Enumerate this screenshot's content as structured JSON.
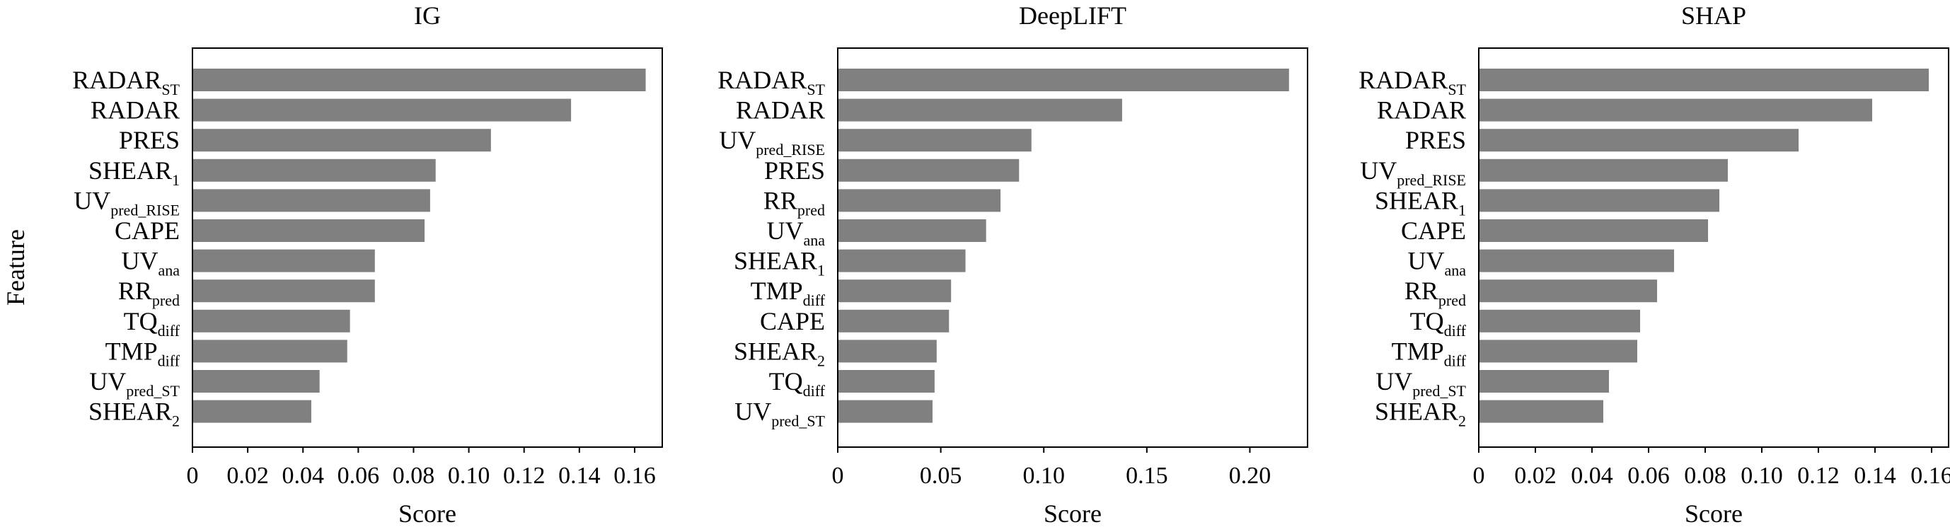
{
  "ylabel": "Feature",
  "colors": {
    "bar": "#808080",
    "axis": "#000000"
  },
  "chart_data": [
    {
      "type": "bar",
      "orientation": "horizontal",
      "title": "IG",
      "xlabel": "Score",
      "ylabel": "Feature",
      "xlim": [
        0,
        0.17
      ],
      "xticks": [
        0,
        0.02,
        0.04,
        0.06,
        0.08,
        0.1,
        0.12,
        0.14,
        0.16
      ],
      "xtick_labels": [
        "0",
        "0.02",
        "0.04",
        "0.06",
        "0.08",
        "0.10",
        "0.12",
        "0.14",
        "0.16"
      ],
      "categories": [
        {
          "base": "RADAR",
          "sub": "ST"
        },
        {
          "base": "RADAR",
          "sub": ""
        },
        {
          "base": "PRES",
          "sub": ""
        },
        {
          "base": "SHEAR",
          "sub": "1"
        },
        {
          "base": "UV",
          "sub": "pred_RISE"
        },
        {
          "base": "CAPE",
          "sub": ""
        },
        {
          "base": "UV",
          "sub": "ana"
        },
        {
          "base": "RR",
          "sub": "pred"
        },
        {
          "base": "TQ",
          "sub": "diff"
        },
        {
          "base": "TMP",
          "sub": "diff"
        },
        {
          "base": "UV",
          "sub": "pred_ST"
        },
        {
          "base": "SHEAR",
          "sub": "2"
        }
      ],
      "values": [
        0.164,
        0.137,
        0.108,
        0.088,
        0.086,
        0.084,
        0.066,
        0.066,
        0.057,
        0.056,
        0.046,
        0.043
      ]
    },
    {
      "type": "bar",
      "orientation": "horizontal",
      "title": "DeepLIFT",
      "xlabel": "Score",
      "ylabel": "",
      "xlim": [
        0,
        0.228
      ],
      "xticks": [
        0,
        0.05,
        0.1,
        0.15,
        0.2
      ],
      "xtick_labels": [
        "0",
        "0.05",
        "0.10",
        "0.15",
        "0.20"
      ],
      "categories": [
        {
          "base": "RADAR",
          "sub": "ST"
        },
        {
          "base": "RADAR",
          "sub": ""
        },
        {
          "base": "UV",
          "sub": "pred_RISE"
        },
        {
          "base": "PRES",
          "sub": ""
        },
        {
          "base": "RR",
          "sub": "pred"
        },
        {
          "base": "UV",
          "sub": "ana"
        },
        {
          "base": "SHEAR",
          "sub": "1"
        },
        {
          "base": "TMP",
          "sub": "diff"
        },
        {
          "base": "CAPE",
          "sub": ""
        },
        {
          "base": "SHEAR",
          "sub": "2"
        },
        {
          "base": "TQ",
          "sub": "diff"
        },
        {
          "base": "UV",
          "sub": "pred_ST"
        }
      ],
      "values": [
        0.219,
        0.138,
        0.094,
        0.088,
        0.079,
        0.072,
        0.062,
        0.055,
        0.054,
        0.048,
        0.047,
        0.046
      ]
    },
    {
      "type": "bar",
      "orientation": "horizontal",
      "title": "SHAP",
      "xlabel": "Score",
      "ylabel": "",
      "xlim": [
        0,
        0.166
      ],
      "xticks": [
        0,
        0.02,
        0.04,
        0.06,
        0.08,
        0.1,
        0.12,
        0.14,
        0.16
      ],
      "xtick_labels": [
        "0",
        "0.02",
        "0.04",
        "0.06",
        "0.08",
        "0.10",
        "0.12",
        "0.14",
        "0.16"
      ],
      "categories": [
        {
          "base": "RADAR",
          "sub": "ST"
        },
        {
          "base": "RADAR",
          "sub": ""
        },
        {
          "base": "PRES",
          "sub": ""
        },
        {
          "base": "UV",
          "sub": "pred_RISE"
        },
        {
          "base": "SHEAR",
          "sub": "1"
        },
        {
          "base": "CAPE",
          "sub": ""
        },
        {
          "base": "UV",
          "sub": "ana"
        },
        {
          "base": "RR",
          "sub": "pred"
        },
        {
          "base": "TQ",
          "sub": "diff"
        },
        {
          "base": "TMP",
          "sub": "diff"
        },
        {
          "base": "UV",
          "sub": "pred_ST"
        },
        {
          "base": "SHEAR",
          "sub": "2"
        }
      ],
      "values": [
        0.159,
        0.139,
        0.113,
        0.088,
        0.085,
        0.081,
        0.069,
        0.063,
        0.057,
        0.056,
        0.046,
        0.044
      ]
    }
  ]
}
